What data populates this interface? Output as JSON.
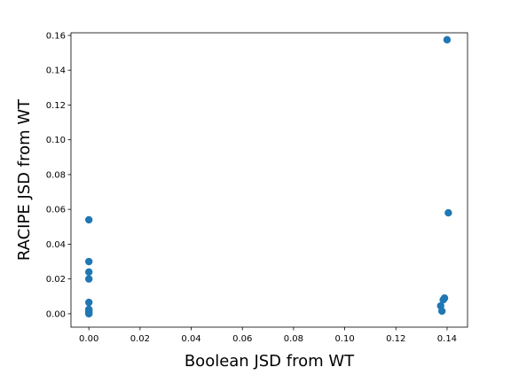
{
  "chart_data": {
    "type": "scatter",
    "xlabel": "Boolean JSD from WT",
    "ylabel": "RACIPE JSD from WT",
    "xlim": [
      -0.007,
      0.148
    ],
    "ylim": [
      -0.0077,
      0.1615
    ],
    "xticks": [
      0.0,
      0.02,
      0.04,
      0.06,
      0.08,
      0.1,
      0.12,
      0.14
    ],
    "xtick_labels": [
      "0.00",
      "0.02",
      "0.04",
      "0.06",
      "0.08",
      "0.10",
      "0.12",
      "0.14"
    ],
    "yticks": [
      0.0,
      0.02,
      0.04,
      0.06,
      0.08,
      0.1,
      0.12,
      0.14,
      0.16
    ],
    "ytick_labels": [
      "0.00",
      "0.02",
      "0.04",
      "0.06",
      "0.08",
      "0.10",
      "0.12",
      "0.14",
      "0.16"
    ],
    "grid": false,
    "marker_color": "#1f77b4",
    "points": [
      {
        "x": 0.0,
        "y": 0.054
      },
      {
        "x": 0.0,
        "y": 0.03
      },
      {
        "x": 0.0,
        "y": 0.024
      },
      {
        "x": 0.0,
        "y": 0.02
      },
      {
        "x": 0.0,
        "y": 0.0065
      },
      {
        "x": 0.0,
        "y": 0.0025
      },
      {
        "x": 0.0,
        "y": 0.0015
      },
      {
        "x": 0.0,
        "y": 0.0005
      },
      {
        "x": 0.0,
        "y": 0.0
      },
      {
        "x": 0.14,
        "y": 0.1575
      },
      {
        "x": 0.1405,
        "y": 0.058
      },
      {
        "x": 0.139,
        "y": 0.009
      },
      {
        "x": 0.1385,
        "y": 0.008
      },
      {
        "x": 0.1375,
        "y": 0.0045
      },
      {
        "x": 0.138,
        "y": 0.0015
      }
    ]
  }
}
